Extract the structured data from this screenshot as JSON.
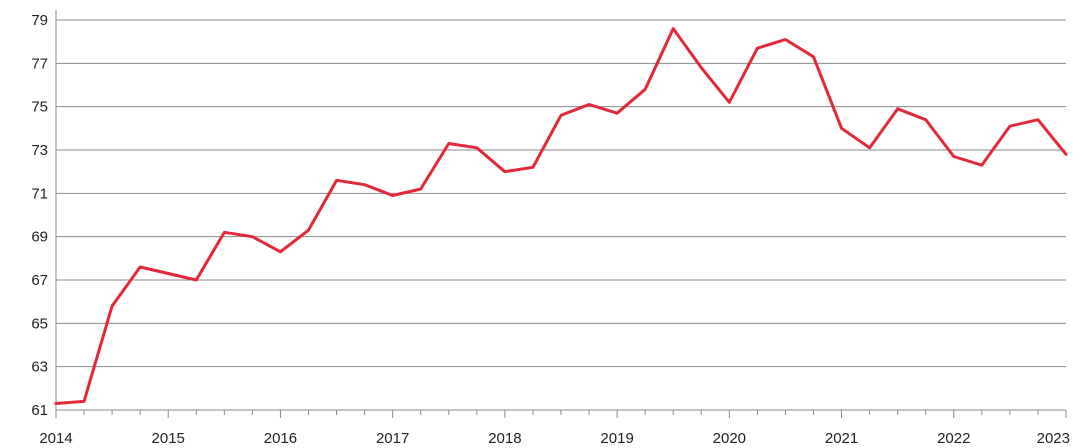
{
  "chart_data": {
    "type": "line",
    "title": "",
    "xlabel": "",
    "ylabel": "",
    "ylim": [
      61,
      79
    ],
    "yticks": [
      "61",
      "63",
      "65",
      "67",
      "69",
      "71",
      "73",
      "75",
      "77",
      "79"
    ],
    "xlim": [
      2014,
      2023
    ],
    "xticks": [
      "2014",
      "2015",
      "2016",
      "2017",
      "2018",
      "2019",
      "2020",
      "2021",
      "2022",
      "2023"
    ],
    "grid": true,
    "legend": "none",
    "series": [
      {
        "color": "#e3283a",
        "x": [
          2014.0,
          2014.25,
          2014.5,
          2014.75,
          2015.0,
          2015.25,
          2015.5,
          2015.75,
          2016.0,
          2016.25,
          2016.5,
          2016.75,
          2017.0,
          2017.25,
          2017.5,
          2017.75,
          2018.0,
          2018.25,
          2018.5,
          2018.75,
          2019.0,
          2019.25,
          2019.5,
          2019.75,
          2020.0,
          2020.25,
          2020.5,
          2020.75,
          2021.0,
          2021.25,
          2021.5,
          2021.75,
          2022.0,
          2022.25,
          2022.5,
          2022.75,
          2023.0
        ],
        "values": [
          61.3,
          61.4,
          65.8,
          67.6,
          67.3,
          67.0,
          69.2,
          69.0,
          68.3,
          69.3,
          71.6,
          71.4,
          70.9,
          71.2,
          73.3,
          73.1,
          72.0,
          72.2,
          74.6,
          75.1,
          74.7,
          75.8,
          78.6,
          76.8,
          75.2,
          77.7,
          78.1,
          77.3,
          74.0,
          73.1,
          74.9,
          74.4,
          72.7,
          72.3,
          74.1,
          74.4,
          72.8
        ]
      }
    ]
  }
}
